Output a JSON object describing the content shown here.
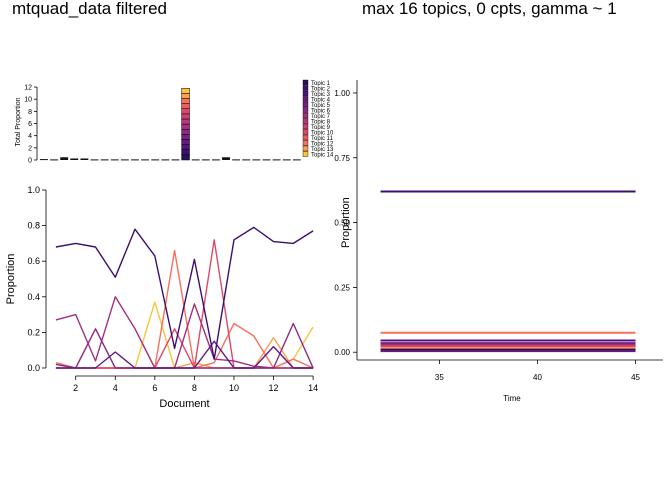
{
  "titles": {
    "left": "mtquad_data filtered",
    "right": "max 16 topics, 0 cpts, gamma ~ 1"
  },
  "colors": {
    "axis": "#000000",
    "line_gray": "#333333"
  },
  "chart_data": [
    {
      "type": "bar",
      "stacked": true,
      "ylabel": "Total Proportion",
      "yticks": [
        0,
        2,
        4,
        6,
        8,
        10,
        12
      ],
      "ylim": [
        0,
        12.5
      ],
      "n_documents": 26,
      "legend_position": "right",
      "legend": [
        "Topic 1",
        "Topic 2",
        "Topic 3",
        "Topic 4",
        "Topic 5",
        "Topic 6",
        "Topic 7",
        "Topic 8",
        "Topic 9",
        "Topic 10",
        "Topic 11",
        "Topic 12",
        "Topic 13",
        "Topic 14"
      ],
      "palette": [
        "#2a1157",
        "#3b0f70",
        "#51127c",
        "#641a80",
        "#7a2182",
        "#8c2981",
        "#a3307e",
        "#b73779",
        "#cd4071",
        "#de4968",
        "#ec5d60",
        "#f7705c",
        "#fca04a",
        "#fec33c"
      ],
      "totals": [
        0.15,
        0.1,
        0.45,
        0.25,
        0.25,
        0.1,
        0.1,
        0.1,
        0.1,
        0.1,
        0.1,
        0.1,
        0.1,
        0.1,
        11.8,
        0.1,
        0.1,
        0.1,
        0.45,
        0.1,
        0.1,
        0.1,
        0.1,
        0.1,
        0.1,
        0.1
      ],
      "stacked_index": 14
    },
    {
      "type": "line",
      "xlabel": "Document",
      "ylabel": "Proportion",
      "xticks": [
        2,
        4,
        6,
        8,
        10,
        12,
        14
      ],
      "yticks": [
        "0.0",
        "0.2",
        "0.4",
        "0.6",
        "0.8",
        "1.0"
      ],
      "xlim": [
        1,
        14
      ],
      "ylim": [
        0,
        1
      ],
      "x": [
        1,
        2,
        3,
        4,
        5,
        6,
        7,
        8,
        9,
        10,
        11,
        12,
        13,
        14
      ],
      "series": [
        {
          "color": "#3b0f70",
          "values": [
            0.68,
            0.7,
            0.68,
            0.51,
            0.78,
            0.63,
            0.11,
            0.61,
            0.05,
            0.72,
            0.79,
            0.71,
            0.7,
            0.77
          ]
        },
        {
          "color": "#641a80",
          "values": [
            0.0,
            0.0,
            0.0,
            0.09,
            0.0,
            0.0,
            0.0,
            0.0,
            0.15,
            0.0,
            0.0,
            0.12,
            0.0,
            0.0
          ]
        },
        {
          "color": "#8c2981",
          "values": [
            0.02,
            0.0,
            0.22,
            0.0,
            0.0,
            0.0,
            0.0,
            0.0,
            0.0,
            0.0,
            0.0,
            0.0,
            0.25,
            0.0
          ]
        },
        {
          "color": "#a3307e",
          "values": [
            0.27,
            0.3,
            0.04,
            0.4,
            0.22,
            0.0,
            0.0,
            0.36,
            0.05,
            0.04,
            0.01,
            0.0,
            0.0,
            0.0
          ]
        },
        {
          "color": "#de4968",
          "values": [
            0.0,
            0.0,
            0.0,
            0.0,
            0.0,
            0.0,
            0.22,
            0.0,
            0.72,
            0.0,
            0.0,
            0.0,
            0.0,
            0.0
          ]
        },
        {
          "color": "#f7705c",
          "values": [
            0.03,
            0.0,
            0.0,
            0.0,
            0.0,
            0.0,
            0.66,
            0.0,
            0.03,
            0.25,
            0.18,
            0.0,
            0.05,
            0.0
          ]
        },
        {
          "color": "#fca04a",
          "values": [
            0.0,
            0.0,
            0.0,
            0.0,
            0.0,
            0.0,
            0.0,
            0.03,
            0.0,
            0.0,
            0.0,
            0.17,
            0.0,
            0.0
          ]
        },
        {
          "color": "#fec33c",
          "values": [
            0.0,
            0.0,
            0.0,
            0.0,
            0.0,
            0.37,
            0.0,
            0.0,
            0.0,
            0.0,
            0.0,
            0.0,
            0.05,
            0.23
          ]
        }
      ]
    },
    {
      "type": "line",
      "xlabel": "Time",
      "ylabel": "Proportion",
      "xticks": [
        35,
        40,
        45
      ],
      "yticks": [
        "0.00",
        "0.25",
        "0.50",
        "0.75",
        "1.00"
      ],
      "xlim": [
        30.8,
        46.4
      ],
      "ylim": [
        -0.03,
        1.05
      ],
      "x_range": [
        32,
        45
      ],
      "series": [
        {
          "color": "#3b0f70",
          "value": 0.62
        },
        {
          "color": "#f7705c",
          "value": 0.075
        },
        {
          "color": "#51127c",
          "value": 0.045
        },
        {
          "color": "#7a2182",
          "value": 0.035
        },
        {
          "color": "#a3307e",
          "value": 0.028
        },
        {
          "color": "#de4968",
          "value": 0.022
        },
        {
          "color": "#fca04a",
          "value": 0.016
        },
        {
          "color": "#2a1157",
          "value": 0.01
        },
        {
          "color": "#641a80",
          "value": 0.004
        }
      ]
    }
  ]
}
